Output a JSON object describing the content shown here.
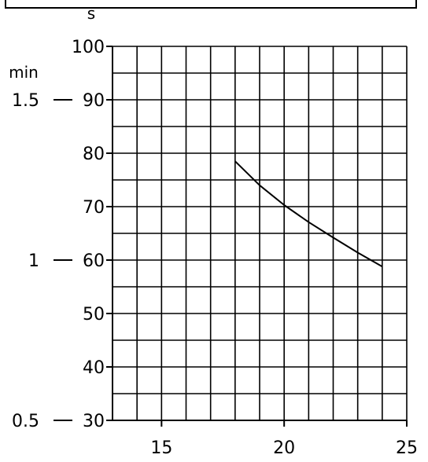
{
  "chart_data": {
    "type": "line",
    "title": "",
    "ylabel_left": "min",
    "ylabel_right": "s",
    "xlabel": "",
    "xlim": [
      13,
      25
    ],
    "ylim": [
      30,
      100
    ],
    "grid": true,
    "x_tick_labels": [
      "15",
      "20",
      "25"
    ],
    "x_ticks": [
      15,
      20,
      25
    ],
    "y_ticks_seconds": [
      {
        "value": 30,
        "label": "30"
      },
      {
        "value": 40,
        "label": "40"
      },
      {
        "value": 50,
        "label": "50"
      },
      {
        "value": 60,
        "label": "60"
      },
      {
        "value": 70,
        "label": "70"
      },
      {
        "value": 80,
        "label": "80"
      },
      {
        "value": 90,
        "label": "90"
      },
      {
        "value": 100,
        "label": "100"
      }
    ],
    "y_ticks_minutes": [
      {
        "value": 30,
        "label": "0.5"
      },
      {
        "value": 60,
        "label": "1"
      },
      {
        "value": 90,
        "label": "1.5"
      }
    ],
    "series": [
      {
        "x": [
          18.0,
          19.0,
          20.0,
          21.0,
          22.0,
          23.0,
          24.0
        ],
        "y": [
          78.5,
          74.0,
          70.3,
          67.1,
          64.2,
          61.4,
          58.8
        ]
      }
    ]
  }
}
